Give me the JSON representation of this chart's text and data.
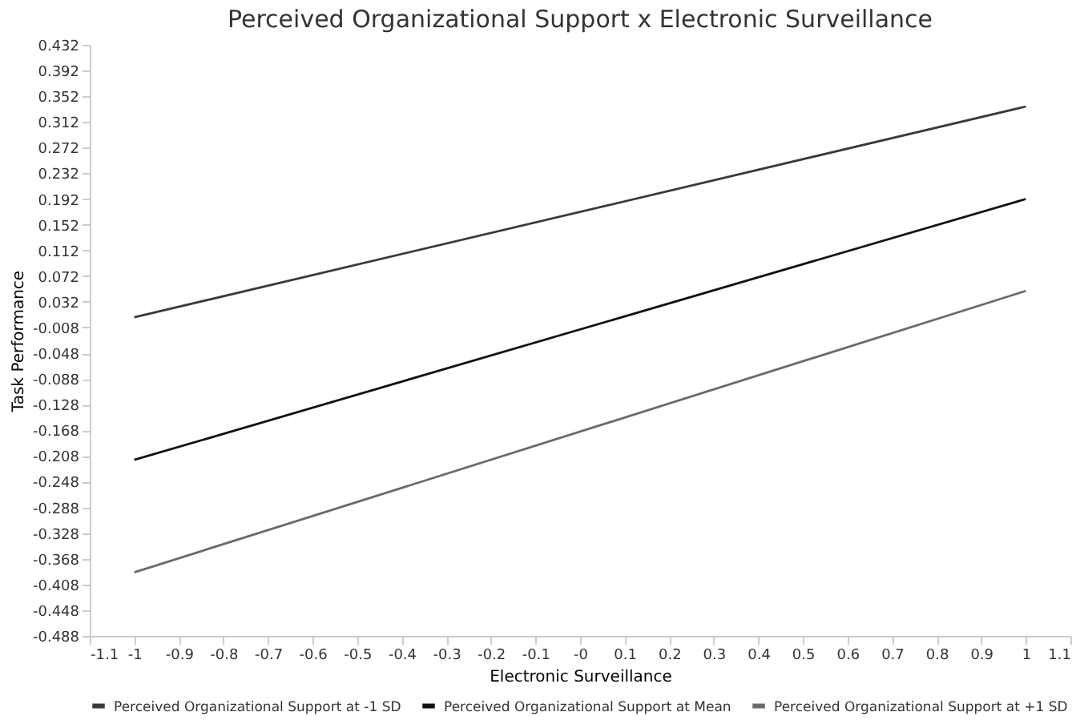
{
  "chart_data": {
    "type": "line",
    "title": "Perceived Organizational Support x Electronic Surveillance",
    "xlabel": "Electronic Surveillance",
    "ylabel": "Task Performance",
    "x": [
      -1,
      1
    ],
    "series": [
      {
        "name": "Perceived Organizational Support at -1 SD",
        "color": "#3a3a3a",
        "values": [
          0.008,
          0.336
        ]
      },
      {
        "name": "Perceived Organizational Support at Mean",
        "color": "#111111",
        "values": [
          -0.214,
          0.192
        ]
      },
      {
        "name": "Perceived Organizational Support at +1 SD",
        "color": "#6a6a6a",
        "values": [
          -0.389,
          0.049
        ]
      }
    ],
    "xlim": [
      -1.1,
      1.1
    ],
    "xticks": [
      -1.1,
      -1,
      -0.9,
      -0.8,
      -0.7,
      -0.6,
      -0.5,
      -0.4,
      -0.3,
      -0.2,
      -0.1,
      {
        "value": 0,
        "label": "-0"
      },
      0.1,
      0.2,
      0.3,
      0.4,
      0.5,
      0.6,
      0.7,
      0.8,
      0.9,
      1,
      1.1
    ],
    "ylim": [
      -0.488,
      0.432
    ],
    "yticks": [
      -0.488,
      -0.448,
      -0.408,
      -0.368,
      -0.328,
      -0.288,
      -0.248,
      -0.208,
      -0.168,
      -0.128,
      -0.088,
      -0.048,
      -0.008,
      0.032,
      0.072,
      0.112,
      0.152,
      0.192,
      0.232,
      0.272,
      0.312,
      0.352,
      0.392,
      0.432
    ],
    "grid": false,
    "legend": "bottom",
    "marker": "none",
    "line_style": "solid"
  }
}
